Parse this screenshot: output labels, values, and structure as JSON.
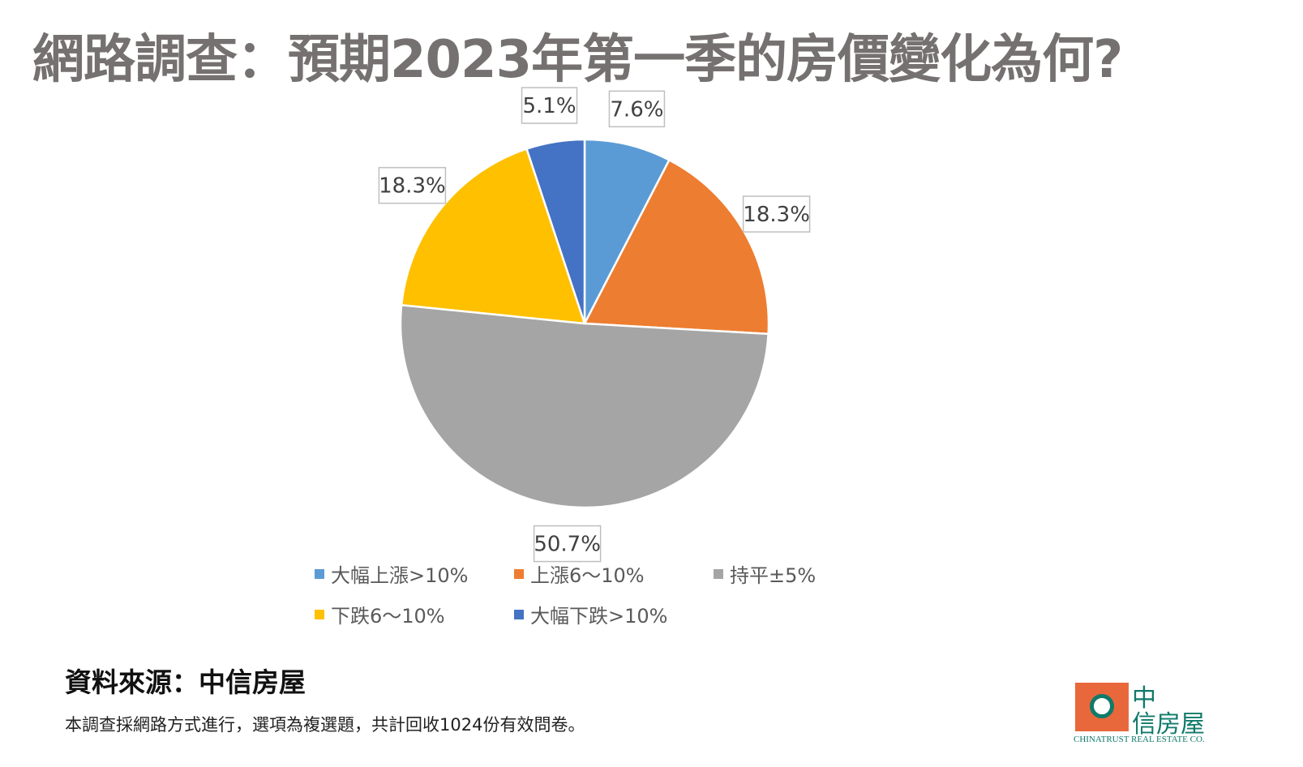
{
  "chart_data": {
    "type": "pie",
    "title": "網路調查：預期2023年第一季的房價變化為何?",
    "categories": [
      "大幅上漲>10%",
      "上漲6～10%",
      "持平±5%",
      "下跌6～10%",
      "大幅下跌>10%"
    ],
    "values": [
      7.6,
      18.3,
      50.7,
      18.3,
      5.1
    ],
    "data_labels": [
      "7.6%",
      "18.3%",
      "50.7%",
      "18.3%",
      "5.1%"
    ],
    "colors": [
      "#5B9BD5",
      "#ED7D31",
      "#A5A5A5",
      "#FFC000",
      "#4472C4"
    ],
    "start_angle": "12 o'clock",
    "direction": "clockwise",
    "legend_position": "bottom"
  },
  "source": "資料來源：中信房屋",
  "note": "本調查採網路方式進行，選項為複選題，共計回收1024份有效問卷。",
  "logo": {
    "cn1": "中",
    "cn2": "信房屋",
    "en": "CHINATRUST REAL ESTATE CO."
  }
}
